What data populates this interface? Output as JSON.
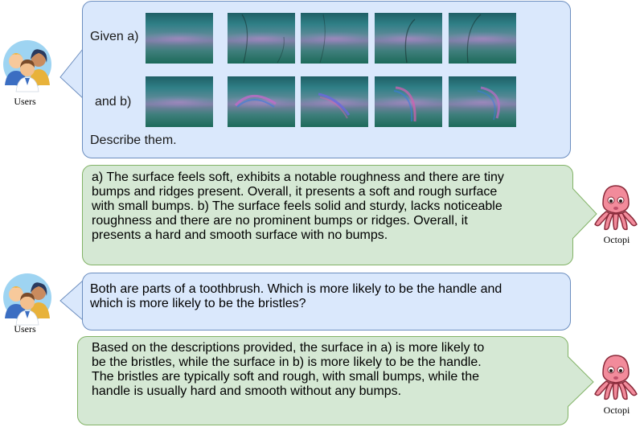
{
  "messages": [
    {
      "role": "user",
      "speaker": "Users",
      "label_a": "Given a)",
      "label_b": "and b)",
      "prompt": "Describe them."
    },
    {
      "role": "assistant",
      "speaker": "Octopi",
      "lines": [
        "a) The surface feels soft, exhibits a notable roughness and there are tiny",
        "bumps and ridges present. Overall, it presents a soft and rough surface",
        "with small bumps. b) The surface feels solid and sturdy, lacks noticeable",
        "roughness and there are no prominent bumps or ridges. Overall, it",
        "presents a hard and smooth surface with no bumps."
      ]
    },
    {
      "role": "user",
      "speaker": "Users",
      "lines": [
        "Both are parts of a toothbrush. Which is more likely to be the handle and",
        "which is more likely to be the bristles?"
      ]
    },
    {
      "role": "assistant",
      "speaker": "Octopi",
      "lines": [
        "Based on the descriptions provided, the surface in a) is more likely to",
        "be the bristles, while the surface in b) is more likely to be the handle.",
        "The bristles are typically soft and rough, with small bumps, while the",
        "handle is usually hard and smooth without any bumps."
      ]
    }
  ],
  "colors": {
    "user_fill": "#dae8fc",
    "user_stroke": "#6c8ebf",
    "bot_fill": "#d5e8d4",
    "bot_stroke": "#82b366",
    "octopus": "#f28b9b"
  },
  "icons": {
    "users": "users-group-avatar-icon",
    "octopi": "octopus-avatar-icon"
  }
}
